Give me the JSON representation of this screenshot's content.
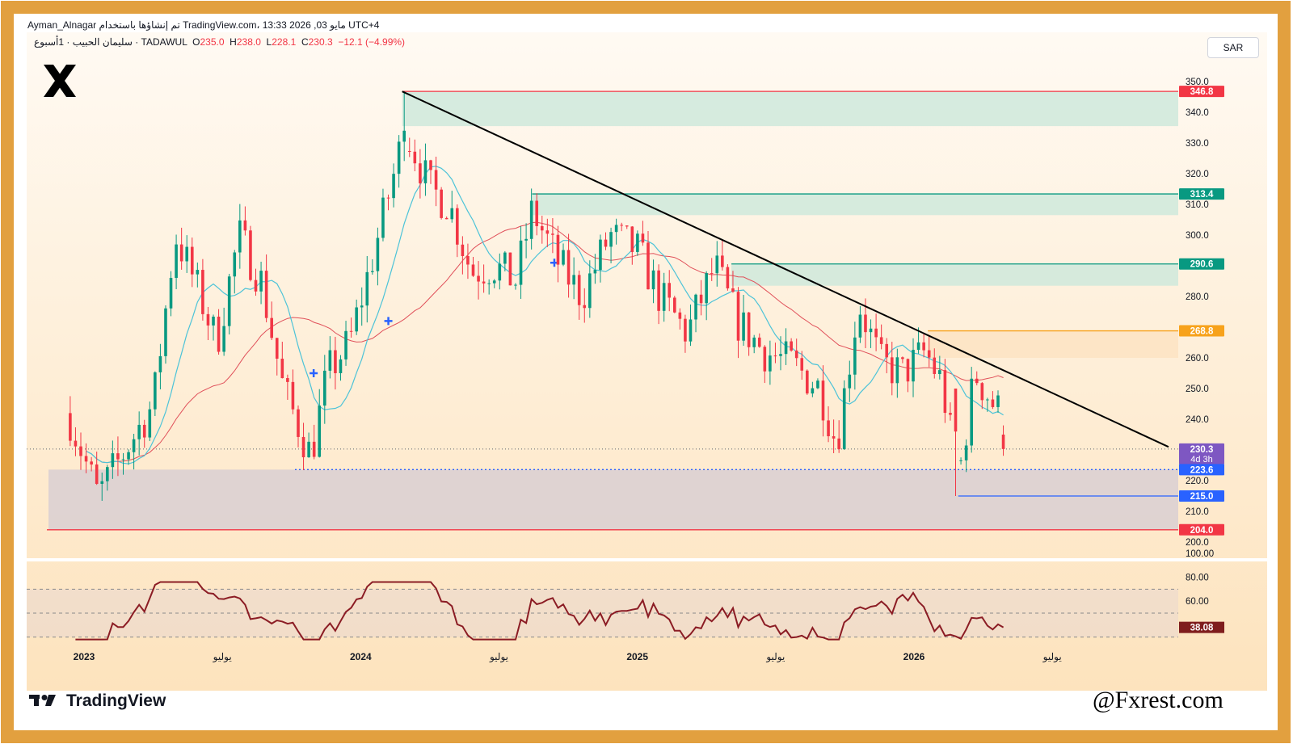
{
  "header": {
    "attribution": "Ayman_Alnagar تم إنشاؤها باستخدام TradingView.com، 13:33 2026 ,03 مايو UTC+4",
    "symbol_line": "سليمان الحبيب · 1أسبوع · TADAWUL",
    "ohlc": [
      {
        "key": "O",
        "value": "235.0"
      },
      {
        "key": "H",
        "value": "238.0"
      },
      {
        "key": "L",
        "value": "228.1"
      },
      {
        "key": "C",
        "value": "230.3"
      }
    ],
    "change": "−12.1 (−4.99%)"
  },
  "currency_button": "SAR",
  "brand_logo": "TradingView",
  "watermark": "@Fxrest.com",
  "colors": {
    "frame": "#e2a03f",
    "bull": "#089981",
    "bear": "#f23645",
    "ma_fast": "#4cc3d8",
    "ma_slow": "#e0505a",
    "trendline": "#000000",
    "rsi_line": "#8b1c24",
    "support_blue": "#2962ff"
  },
  "chart_data": {
    "type": "candlestick",
    "interval": "1 week",
    "symbol": "سليمان الحبيب",
    "exchange": "TADAWUL",
    "currency": "SAR",
    "y_ticks": [
      200,
      210,
      220,
      240,
      250,
      260,
      280,
      290,
      300,
      310,
      320,
      330,
      340,
      350
    ],
    "x_ticks": [
      "2023",
      "يوليو",
      "2024",
      "يوليو",
      "2025",
      "يوليو",
      "2026",
      "يوليو"
    ],
    "x_tick_years": [
      2023.0,
      2023.5,
      2024.0,
      2024.5,
      2025.0,
      2025.5,
      2026.0,
      2026.5
    ],
    "price_labels": [
      {
        "value": "346.8",
        "color": "#f23645"
      },
      {
        "value": "313.4",
        "color": "#089981"
      },
      {
        "value": "290.6",
        "color": "#089981"
      },
      {
        "value": "268.8",
        "color": "#f7a21b"
      },
      {
        "value": "230.3",
        "sub": "4d 3h",
        "color": "#7e57c2"
      },
      {
        "value": "223.6",
        "color": "#2962ff"
      },
      {
        "value": "215.0",
        "color": "#2962ff"
      },
      {
        "value": "204.0",
        "color": "#f23645"
      }
    ],
    "levels": [
      {
        "price": 346.8,
        "color": "#f23645",
        "style": "solid"
      },
      {
        "price": 313.4,
        "color": "#089981",
        "style": "solid"
      },
      {
        "price": 290.6,
        "color": "#089981",
        "style": "solid"
      },
      {
        "price": 268.8,
        "color": "#f7a21b",
        "style": "solid"
      },
      {
        "price": 230.3,
        "color": "#888888",
        "style": "dotted"
      },
      {
        "price": 223.6,
        "color": "#2962ff",
        "style": "dotted"
      },
      {
        "price": 215.0,
        "color": "#2962ff",
        "style": "solid"
      },
      {
        "price": 204.0,
        "color": "#f23645",
        "style": "solid"
      }
    ],
    "zones": [
      {
        "top": 346.8,
        "bottom": 335.5,
        "color": "#cfe9dc"
      },
      {
        "top": 313.4,
        "bottom": 306.5,
        "color": "#cfe9dc"
      },
      {
        "top": 290.6,
        "bottom": 283.5,
        "color": "#cfe9dc"
      },
      {
        "top": 268.8,
        "bottom": 260.0,
        "color": "#fde3c2"
      },
      {
        "top": 223.6,
        "bottom": 204.0,
        "color": "#d9cfd2"
      }
    ],
    "trendline": {
      "from": [
        2024.15,
        346.8
      ],
      "to": [
        2026.92,
        231.0
      ]
    },
    "rsi": {
      "ticks": [
        60.0,
        80.0,
        100.0
      ],
      "last": "38.08",
      "levels": [
        70,
        50,
        30
      ]
    }
  }
}
